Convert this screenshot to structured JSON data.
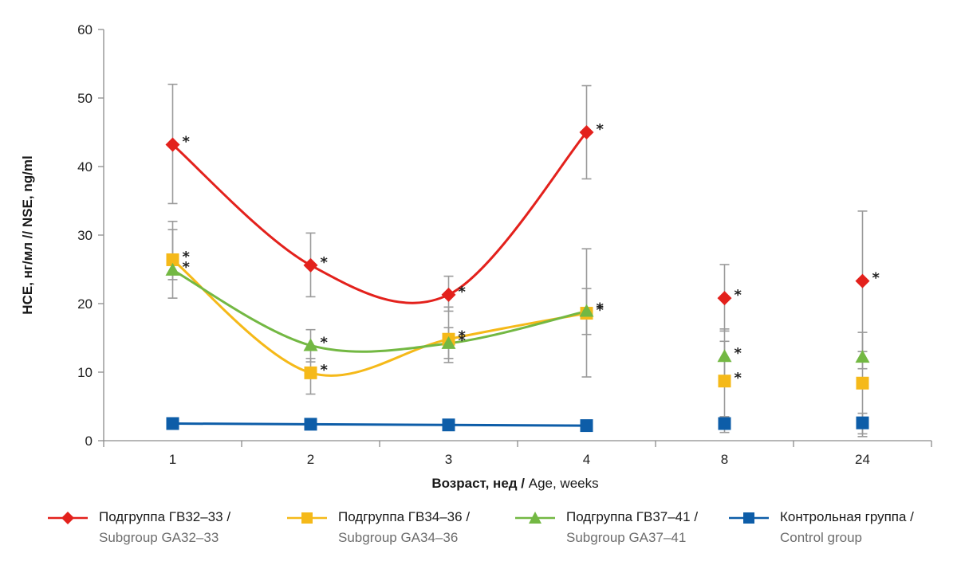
{
  "chart_data": {
    "type": "line",
    "title": "",
    "ylabel": "НСЕ, нг/мл // NSE, ng/ml",
    "xlabel_ru": "Возраст, нед / ",
    "xlabel_en": "Age, weeks",
    "ylim": [
      0,
      60
    ],
    "yticks": [
      "0",
      "10",
      "20",
      "30",
      "40",
      "50",
      "60"
    ],
    "categories": [
      "1",
      "2",
      "3",
      "4",
      "8",
      "24"
    ],
    "grid": false,
    "legend_position": "bottom",
    "series": [
      {
        "key": "ga3233",
        "name_ru": "Подгруппа ГВ32–33 /",
        "name_en": "Subgroup GA32–33",
        "color": "#e3211c",
        "marker": "diamond",
        "values": [
          43.2,
          25.6,
          21.3,
          45.0,
          20.8,
          23.3
        ],
        "err_low": [
          34.6,
          21.0,
          18.9,
          38.2,
          16.0,
          13.0
        ],
        "err_high": [
          52.0,
          30.3,
          24.0,
          51.8,
          25.7,
          33.5
        ],
        "stars": [
          1,
          1,
          1,
          1,
          1,
          1
        ]
      },
      {
        "key": "ga3436",
        "name_ru": "Подгруппа ГВ34–36 /",
        "name_en": "Subgroup GA34–36",
        "color": "#f5b919",
        "marker": "square",
        "values": [
          26.4,
          9.9,
          14.8,
          18.6,
          8.7,
          8.4
        ],
        "err_low": [
          20.8,
          6.8,
          12.0,
          9.3,
          2.0,
          1.0
        ],
        "err_high": [
          32.0,
          12.0,
          19.5,
          28.0,
          14.5,
          15.8
        ],
        "stars": [
          1,
          1,
          1,
          1,
          1,
          0
        ]
      },
      {
        "key": "ga3741",
        "name_ru": "Подгруппа ГВ37–41 /",
        "name_en": "Subgroup GA37–41",
        "color": "#73b843",
        "marker": "triangle",
        "values": [
          24.9,
          13.9,
          14.2,
          18.9,
          12.3,
          12.2
        ],
        "err_low": [
          23.5,
          11.5,
          11.4,
          15.5,
          9.5,
          10.5
        ],
        "err_high": [
          30.8,
          16.2,
          16.5,
          22.2,
          16.3,
          13.0
        ],
        "stars": [
          1,
          1,
          1,
          1,
          1,
          0
        ]
      },
      {
        "key": "control",
        "name_ru": "Контрольная группа /",
        "name_en": "Control group",
        "color": "#0d5da8",
        "marker": "square",
        "values": [
          2.5,
          2.4,
          2.3,
          2.2,
          2.5,
          2.6
        ],
        "err_low": [
          2.3,
          2.2,
          2.1,
          2.0,
          1.2,
          0.6
        ],
        "err_high": [
          2.7,
          2.6,
          2.5,
          2.4,
          3.5,
          4.0
        ],
        "stars": [
          0,
          0,
          0,
          0,
          0,
          0
        ]
      }
    ],
    "star_symbol": "*"
  }
}
